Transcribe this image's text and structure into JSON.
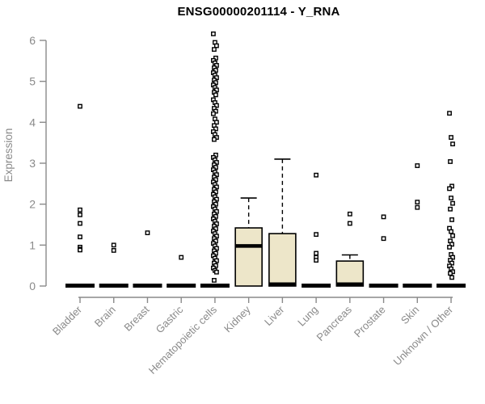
{
  "page": {
    "title": "ENSG00000201114 - Y_RNA"
  },
  "chart_data": {
    "type": "boxplot",
    "title": "ENSG00000201114 - Y_RNA",
    "ylabel": "Expression",
    "xlabel": "",
    "ylim": [
      0,
      6.3
    ],
    "yticks": [
      "0",
      "1",
      "2",
      "3",
      "4",
      "5",
      "6"
    ],
    "grid": false,
    "legend": "none",
    "colors": {
      "box_fill": "#EDE6C9",
      "box_stroke": "#000000",
      "median": "#000000",
      "axis": "#8A8A8A",
      "tick_label": "#8A8A8A",
      "title": "#000000",
      "outlier_fill": "#FFFFFF",
      "outlier_stroke": "#000000"
    },
    "categories": [
      {
        "label": "Bladder",
        "q1": 0,
        "median": 0,
        "q3": 0,
        "whisker_low": 0,
        "whisker_high": 0,
        "jitter": false,
        "outliers": [
          4.39,
          1.86,
          1.74,
          1.53,
          1.2,
          0.95,
          0.9,
          0.88
        ]
      },
      {
        "label": "Brain",
        "q1": 0,
        "median": 0,
        "q3": 0,
        "whisker_low": 0,
        "whisker_high": 0,
        "jitter": false,
        "outliers": [
          1.0,
          0.87
        ]
      },
      {
        "label": "Breast",
        "q1": 0,
        "median": 0,
        "q3": 0,
        "whisker_low": 0,
        "whisker_high": 0,
        "jitter": false,
        "outliers": [
          1.3
        ]
      },
      {
        "label": "Gastric",
        "q1": 0,
        "median": 0,
        "q3": 0,
        "whisker_low": 0,
        "whisker_high": 0,
        "jitter": false,
        "outliers": [
          0.7
        ]
      },
      {
        "label": "Hematopoietic cells",
        "q1": 0,
        "median": 0,
        "q3": 0,
        "whisker_low": 0,
        "whisker_high": 0,
        "jitter": true,
        "outliers": [
          6.16,
          5.95,
          5.87,
          5.78,
          5.57,
          5.51,
          5.45,
          5.39,
          5.33,
          5.27,
          5.21,
          5.15,
          5.09,
          5.03,
          4.97,
          4.91,
          4.85,
          4.79,
          4.73,
          4.67,
          4.55,
          4.48,
          4.41,
          4.34,
          4.27,
          4.21,
          4.08,
          4.0,
          3.92,
          3.84,
          3.77,
          3.7,
          3.63,
          3.58,
          3.2,
          3.14,
          3.08,
          3.02,
          2.96,
          2.9,
          2.84,
          2.78,
          2.72,
          2.66,
          2.6,
          2.54,
          2.48,
          2.42,
          2.36,
          2.3,
          2.24,
          2.18,
          2.12,
          2.06,
          2.0,
          1.94,
          1.88,
          1.82,
          1.76,
          1.7,
          1.64,
          1.58,
          1.52,
          1.46,
          1.4,
          1.34,
          1.28,
          1.22,
          1.16,
          1.1,
          1.04,
          0.98,
          0.92,
          0.86,
          0.8,
          0.74,
          0.68,
          0.62,
          0.56,
          0.5,
          0.44,
          0.38,
          0.34,
          0.14
        ]
      },
      {
        "label": "Kidney",
        "q1": 0,
        "median": 0.98,
        "q3": 1.42,
        "whisker_low": 0,
        "whisker_high": 2.15,
        "jitter": false,
        "outliers": []
      },
      {
        "label": "Liver",
        "q1": 0,
        "median": 0,
        "q3": 1.28,
        "whisker_low": 0,
        "whisker_high": 3.1,
        "jitter": false,
        "outliers": []
      },
      {
        "label": "Lung",
        "q1": 0,
        "median": 0,
        "q3": 0,
        "whisker_low": 0,
        "whisker_high": 0,
        "jitter": false,
        "outliers": [
          2.71,
          1.26,
          0.8,
          0.7,
          0.63
        ]
      },
      {
        "label": "Pancreas",
        "q1": 0,
        "median": 0,
        "q3": 0.61,
        "whisker_low": 0,
        "whisker_high": 0.76,
        "jitter": false,
        "outliers": [
          1.76,
          1.53
        ]
      },
      {
        "label": "Prostate",
        "q1": 0,
        "median": 0,
        "q3": 0,
        "whisker_low": 0,
        "whisker_high": 0,
        "jitter": false,
        "outliers": [
          1.69,
          1.16
        ]
      },
      {
        "label": "Skin",
        "q1": 0,
        "median": 0,
        "q3": 0,
        "whisker_low": 0,
        "whisker_high": 0,
        "jitter": false,
        "outliers": [
          2.94,
          2.05,
          1.92
        ]
      },
      {
        "label": "Unknown / Other",
        "q1": 0,
        "median": 0,
        "q3": 0,
        "whisker_low": 0,
        "whisker_high": 0,
        "jitter": true,
        "outliers": [
          4.22,
          3.63,
          3.47,
          3.04,
          2.44,
          2.38,
          2.15,
          2.02,
          1.88,
          1.62,
          1.41,
          1.33,
          1.23,
          1.1,
          1.02,
          0.95,
          0.77,
          0.7,
          0.63,
          0.56,
          0.49,
          0.42,
          0.35,
          0.31,
          0.21
        ]
      }
    ]
  }
}
